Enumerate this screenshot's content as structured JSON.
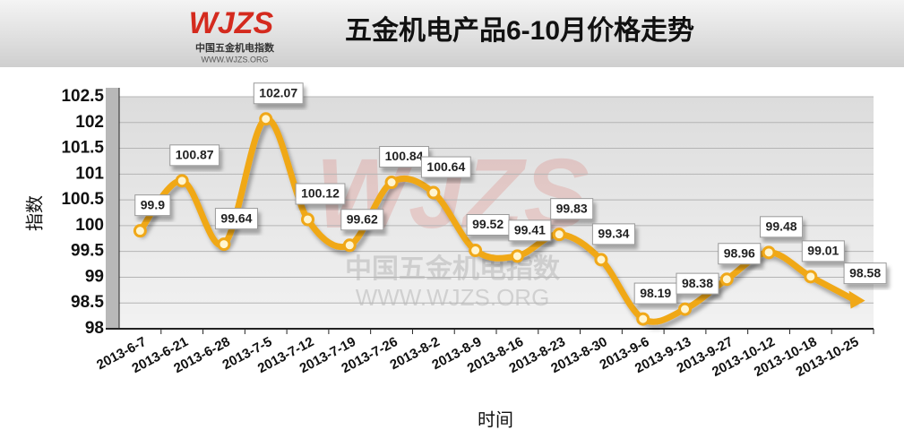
{
  "logo": {
    "brand": "WJZS",
    "name": "中国五金机电指数",
    "url": "WWW.WJZS.ORG"
  },
  "chart_data": {
    "type": "line",
    "title": "五金机电产品6-10月价格走势",
    "x_label": "时间",
    "y_label": "指数",
    "categories": [
      "2013-6-7",
      "2013-6-21",
      "2013-6-28",
      "2013-7-5",
      "2013-7-12",
      "2013-7-19",
      "2013-7-26",
      "2013-8-2",
      "2013-8-9",
      "2013-8-16",
      "2013-8-23",
      "2013-8-30",
      "2013-9-6",
      "2013-9-13",
      "2013-9-27",
      "2013-10-12",
      "2013-10-18",
      "2013-10-25"
    ],
    "values": [
      99.9,
      100.87,
      99.64,
      102.07,
      100.12,
      99.62,
      100.84,
      100.64,
      99.52,
      99.41,
      99.83,
      99.34,
      98.19,
      98.38,
      98.96,
      99.48,
      99.01,
      98.58
    ],
    "color": "#f0a818",
    "ylim": [
      98,
      102.5
    ],
    "yticks": [
      98,
      98.5,
      99,
      99.5,
      100,
      100.5,
      101,
      101.5,
      102,
      102.5
    ],
    "grid": true
  }
}
